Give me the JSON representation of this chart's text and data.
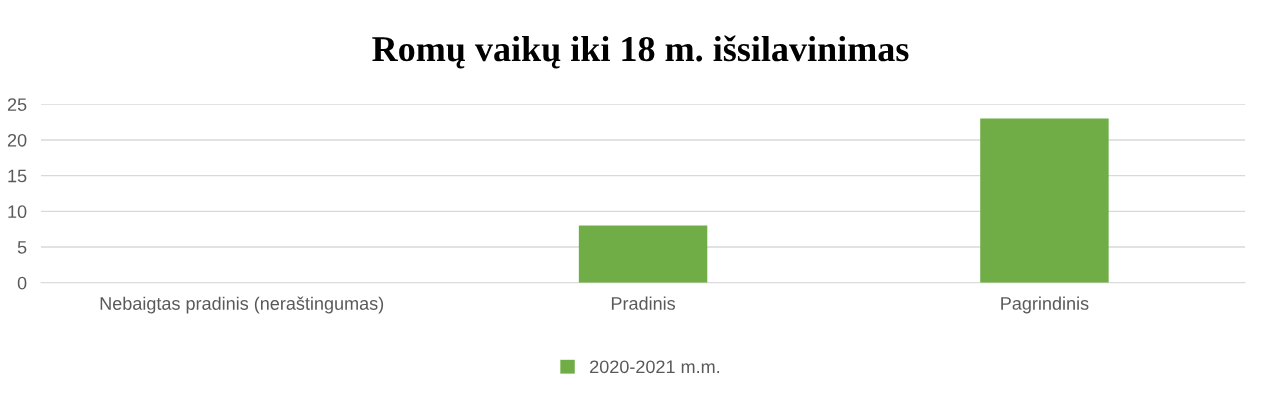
{
  "chart_data": {
    "type": "bar",
    "title": "Romų vaikų iki 18 m. išsilavinimas",
    "categories": [
      "Nebaigtas pradinis (neraštingumas)",
      "Pradinis",
      "Pagrindinis"
    ],
    "series": [
      {
        "name": "2020-2021 m.m.",
        "color": "#70ad47",
        "values": [
          0,
          8,
          23
        ]
      }
    ],
    "ylim": [
      0,
      25
    ],
    "yticks": [
      0,
      5,
      10,
      15,
      20,
      25
    ],
    "grid": "y",
    "legend": "bottom"
  }
}
